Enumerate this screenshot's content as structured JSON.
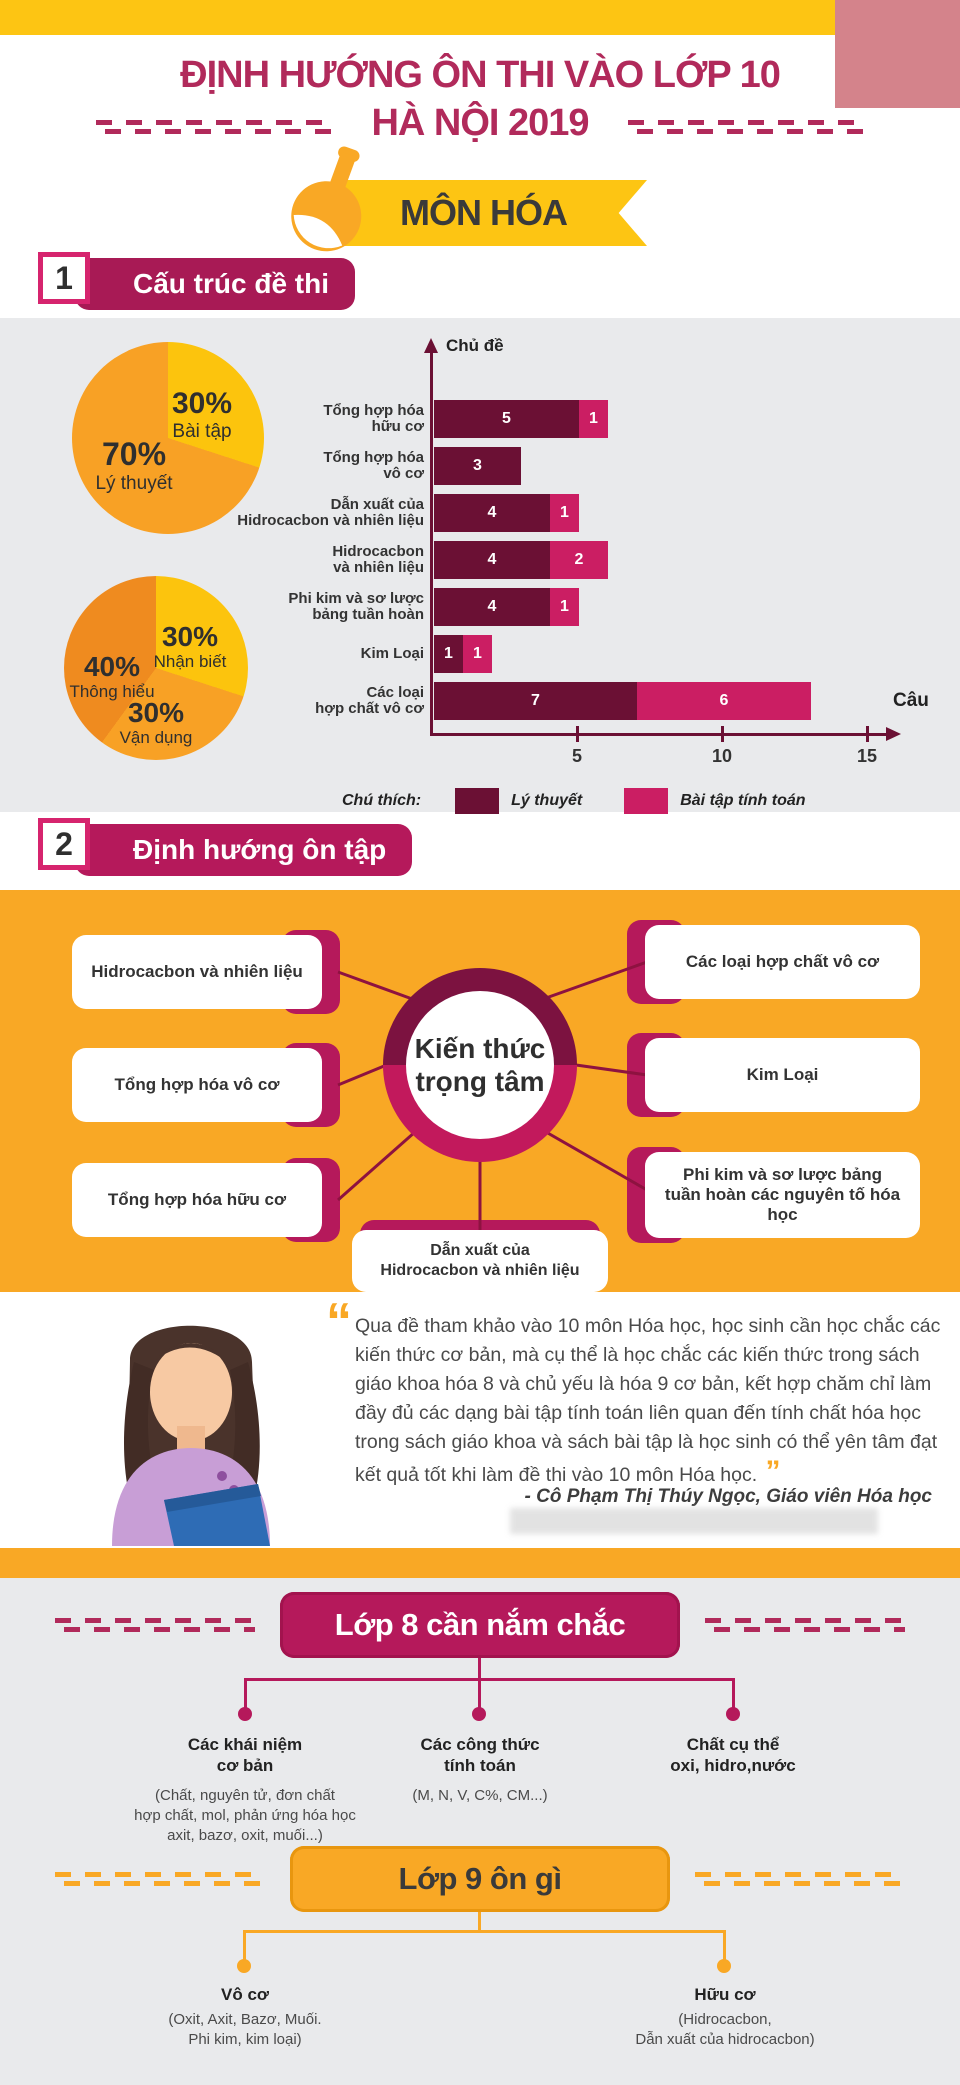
{
  "header": {
    "top_bar_color": "#fdc513",
    "corner_color": "#d4838b",
    "title_line1": "ĐỊNH HƯỚNG ÔN THI VÀO LỚP 10",
    "title_line2": "HÀ NỘI 2019",
    "banner_label": "MÔN HÓA"
  },
  "section1": {
    "number": "1",
    "title": "Cấu trúc đề thi"
  },
  "section2": {
    "number": "2",
    "title": "Định hướng ôn tập",
    "center_label": "Kiến thức\ntrọng tâm",
    "left_boxes": [
      "Hidrocacbon và nhiên liệu",
      "Tổng hợp hóa vô cơ",
      "Tổng hợp hóa hữu cơ"
    ],
    "right_boxes": [
      "Các loại hợp chất vô cơ",
      "Kim Loại",
      "Phi kim và sơ lược bảng\ntuần hoàn các nguyên tố hóa học"
    ],
    "bottom_box": "Dẫn xuất của\nHidrocacbon và nhiên liệu"
  },
  "chart_data": [
    {
      "type": "pie",
      "title": "Cấu trúc đề thi: Lý thuyết / Bài tập",
      "slices": [
        {
          "label": "Bài tập",
          "value": 30,
          "color": "#fcc40d"
        },
        {
          "label": "Lý thuyết",
          "value": 70,
          "color": "#f8a125"
        }
      ]
    },
    {
      "type": "pie",
      "title": "Mức độ nhận thức",
      "slices": [
        {
          "label": "Nhận biết",
          "value": 30,
          "color": "#fcc40d"
        },
        {
          "label": "Vận dụng",
          "value": 30,
          "color": "#f8a125"
        },
        {
          "label": "Thông hiểu",
          "value": 40,
          "color": "#ef8b1f"
        }
      ]
    },
    {
      "type": "bar",
      "orientation": "horizontal",
      "stacked": true,
      "ylabel": "Chủ đề",
      "xlabel": "Câu",
      "x_ticks": [
        5,
        10,
        15
      ],
      "xlim": [
        0,
        15
      ],
      "legend_title": "Chú thích:",
      "legend_position": "bottom",
      "categories": [
        "Tổng hợp hóa\nhữu cơ",
        "Tổng hợp hóa\nvô cơ",
        "Dẫn xuất của\nHidrocacbon và nhiên liệu",
        "Hidrocacbon\nvà nhiên liệu",
        "Phi kim và sơ lược\nbảng tuần hoàn",
        "Kim Loại",
        "Các loại\nhợp chất vô cơ"
      ],
      "series": [
        {
          "name": "Lý thuyết",
          "color": "#6b1034",
          "values": [
            5,
            3,
            4,
            4,
            4,
            1,
            7
          ]
        },
        {
          "name": "Bài tập tính toán",
          "color": "#cb1e63",
          "values": [
            1,
            0,
            1,
            2,
            1,
            1,
            6
          ]
        }
      ]
    }
  ],
  "quote": {
    "text": "Qua đề tham khảo vào 10 môn Hóa học, học sinh cần học chắc các kiến thức cơ bản, mà cụ thể là học chắc các kiến thức trong sách giáo khoa hóa 8 và chủ yếu là hóa 9 cơ bản, kết hợp chăm chỉ làm đầy đủ các dạng bài tập tính toán liên quan đến tính chất hóa học trong sách giáo khoa và sách bài tập là học sinh có thể yên tâm đạt kết quả tốt khi làm đề thi vào 10 môn Hóa học.",
    "attribution": "- Cô Phạm Thị Thúy Ngọc, Giáo viên Hóa học"
  },
  "grade8": {
    "title": "Lớp 8 cần nắm chắc",
    "items": [
      {
        "title": "Các khái niệm\ncơ bản",
        "detail": "(Chất, nguyên tử, đơn chất\nhợp chất, mol, phản ứng hóa học\naxit, bazơ, oxit, muối...)"
      },
      {
        "title": "Các công thức\ntính toán",
        "detail": "(M, N, V, C%, CM...)"
      },
      {
        "title": "Chất cụ thể\noxi, hidro,nước",
        "detail": ""
      }
    ]
  },
  "grade9": {
    "title": "Lớp 9 ôn gì",
    "items": [
      {
        "title": "Vô cơ",
        "detail": "(Oxit, Axit, Bazơ, Muối.\nPhi kim, kim loại)"
      },
      {
        "title": "Hữu cơ",
        "detail": "(Hidrocacbon,\nDẫn xuất của hidrocacbon)"
      }
    ]
  }
}
